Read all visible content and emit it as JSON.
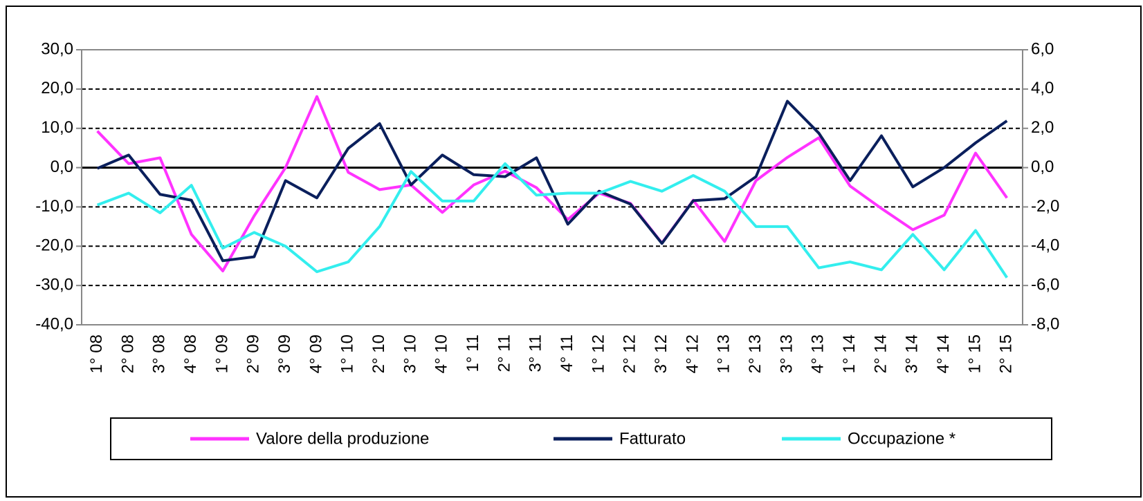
{
  "chart_data": {
    "type": "line",
    "categories": [
      "1° 08",
      "2° 08",
      "3° 08",
      "4° 08",
      "1° 09",
      "2° 09",
      "3° 09",
      "4° 09",
      "1° 10",
      "2° 10",
      "3° 10",
      "4° 10",
      "1° 11",
      "2° 11",
      "3° 11",
      "4° 11",
      "1° 12",
      "2° 12",
      "3° 12",
      "4° 12",
      "1° 13",
      "2° 13",
      "3° 13",
      "4° 13",
      "1° 14",
      "2° 14",
      "3° 14",
      "4° 14",
      "1° 15",
      "2° 15"
    ],
    "series": [
      {
        "name": "Valore della produzione",
        "color": "#ff33ff",
        "values": [
          9.3,
          1.0,
          2.5,
          -17.0,
          -26.3,
          -12.3,
          0.0,
          18.1,
          -1.2,
          -5.6,
          -4.4,
          -11.4,
          -4.4,
          -0.9,
          -5.1,
          -13.2,
          -6.5,
          -9.1,
          -19.2,
          -8.3,
          -18.8,
          -3.3,
          2.6,
          7.6,
          -4.7,
          -10.4,
          -15.8,
          -12.1,
          3.7,
          -7.7
        ]
      },
      {
        "name": "Fatturato",
        "color": "#0a1f5c",
        "values": [
          -0.2,
          3.2,
          -6.8,
          -8.3,
          -23.7,
          -22.7,
          -3.3,
          -7.7,
          4.9,
          11.2,
          -4.4,
          3.2,
          -1.8,
          -2.3,
          2.5,
          -14.4,
          -6.0,
          -9.3,
          -19.3,
          -8.4,
          -7.9,
          -2.3,
          16.9,
          8.8,
          -3.3,
          8.1,
          -4.9,
          0.0,
          6.3,
          11.9
        ]
      },
      {
        "name": "Occupazione *",
        "color": "#33eeee",
        "axis": "y2",
        "values": [
          -1.9,
          -1.3,
          -2.3,
          -0.9,
          -4.1,
          -3.3,
          -4.0,
          -5.3,
          -4.8,
          -3.0,
          -0.2,
          -1.7,
          -1.7,
          0.2,
          -1.4,
          -1.3,
          -1.3,
          -0.7,
          -1.2,
          -0.4,
          -1.2,
          -3.0,
          -3.0,
          -5.1,
          -4.8,
          -5.2,
          -3.4,
          -5.2,
          -3.2,
          -5.6
        ]
      }
    ],
    "ylim": [
      -40,
      30
    ],
    "yticks": [
      {
        "value": -40,
        "label": "-40,0"
      },
      {
        "value": -30,
        "label": "-30,0"
      },
      {
        "value": -20,
        "label": "-20,0"
      },
      {
        "value": -10,
        "label": "-10,0"
      },
      {
        "value": 0,
        "label": "0,0"
      },
      {
        "value": 10,
        "label": "10,0"
      },
      {
        "value": 20,
        "label": "20,0"
      },
      {
        "value": 30,
        "label": "30,0"
      }
    ],
    "y2lim": [
      -8,
      6
    ],
    "y2ticks": [
      {
        "value": -8,
        "label": "-8,0"
      },
      {
        "value": -6,
        "label": "-6,0"
      },
      {
        "value": -4,
        "label": "-4,0"
      },
      {
        "value": -2,
        "label": "-2,0"
      },
      {
        "value": 0,
        "label": "0,0"
      },
      {
        "value": 2,
        "label": "2,0"
      },
      {
        "value": 4,
        "label": "4,0"
      },
      {
        "value": 6,
        "label": "6,0"
      }
    ],
    "grid": true,
    "legend": "bottom"
  }
}
